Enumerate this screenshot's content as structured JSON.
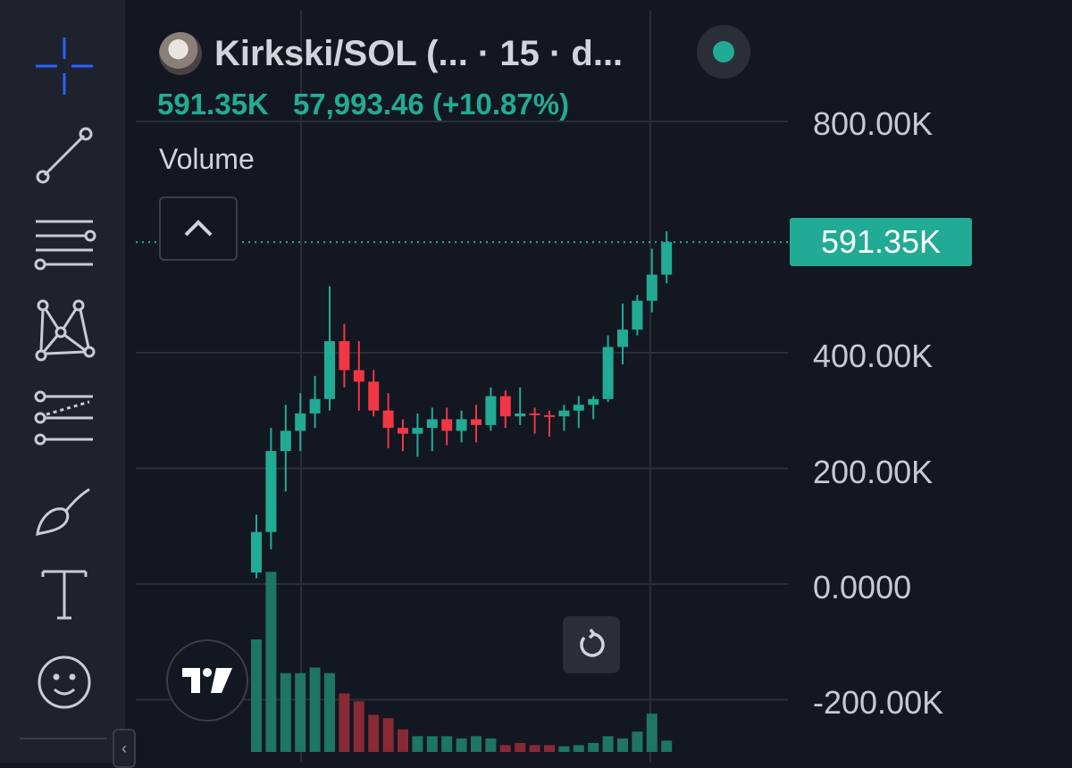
{
  "header": {
    "pair_title": "Kirkski/SOL (...   · 15 · d...",
    "price_primary": "591.35K",
    "price_secondary": "57,993.46 (+10.87%)"
  },
  "legend": {
    "volume_label": "Volume"
  },
  "last_price_badge": "591.35K",
  "icons": [
    "crosshair-icon",
    "trend-line-icon",
    "horizontal-lines-icon",
    "pattern-icon",
    "forecast-icon",
    "brush-icon",
    "text-icon",
    "emoji-icon",
    "chevron-up-icon",
    "reset-icon",
    "tradingview-logo-icon",
    "chevron-left-icon"
  ],
  "colors": {
    "up": "#22ab94",
    "down": "#f23645",
    "background": "#131722",
    "toolbar": "#1e222d"
  },
  "chart_data": {
    "type": "candlestick",
    "y_ticks": [
      "800.00K",
      "400.00K",
      "200.00K",
      "0.0000",
      "-200.00K"
    ],
    "ylim": [
      -200000,
      800000
    ],
    "last_price": 591350,
    "candles": [
      {
        "o": 20000,
        "h": 120000,
        "l": 10000,
        "c": 90000
      },
      {
        "o": 90000,
        "h": 270000,
        "l": 60000,
        "c": 230000
      },
      {
        "o": 230000,
        "h": 310000,
        "l": 160000,
        "c": 265000
      },
      {
        "o": 265000,
        "h": 330000,
        "l": 230000,
        "c": 295000
      },
      {
        "o": 295000,
        "h": 360000,
        "l": 270000,
        "c": 320000
      },
      {
        "o": 320000,
        "h": 515000,
        "l": 300000,
        "c": 420000
      },
      {
        "o": 420000,
        "h": 450000,
        "l": 340000,
        "c": 370000
      },
      {
        "o": 370000,
        "h": 420000,
        "l": 300000,
        "c": 350000
      },
      {
        "o": 350000,
        "h": 370000,
        "l": 290000,
        "c": 300000
      },
      {
        "o": 300000,
        "h": 330000,
        "l": 235000,
        "c": 270000
      },
      {
        "o": 270000,
        "h": 285000,
        "l": 230000,
        "c": 260000
      },
      {
        "o": 260000,
        "h": 295000,
        "l": 220000,
        "c": 270000
      },
      {
        "o": 270000,
        "h": 305000,
        "l": 230000,
        "c": 285000
      },
      {
        "o": 285000,
        "h": 305000,
        "l": 240000,
        "c": 265000
      },
      {
        "o": 265000,
        "h": 300000,
        "l": 245000,
        "c": 285000
      },
      {
        "o": 285000,
        "h": 310000,
        "l": 245000,
        "c": 275000
      },
      {
        "o": 275000,
        "h": 340000,
        "l": 265000,
        "c": 325000
      },
      {
        "o": 325000,
        "h": 335000,
        "l": 270000,
        "c": 290000
      },
      {
        "o": 290000,
        "h": 340000,
        "l": 275000,
        "c": 295000
      },
      {
        "o": 295000,
        "h": 305000,
        "l": 260000,
        "c": 292000
      },
      {
        "o": 292000,
        "h": 300000,
        "l": 255000,
        "c": 290000
      },
      {
        "o": 290000,
        "h": 310000,
        "l": 265000,
        "c": 300000
      },
      {
        "o": 300000,
        "h": 325000,
        "l": 270000,
        "c": 310000
      },
      {
        "o": 310000,
        "h": 325000,
        "l": 285000,
        "c": 320000
      },
      {
        "o": 320000,
        "h": 430000,
        "l": 315000,
        "c": 410000
      },
      {
        "o": 410000,
        "h": 485000,
        "l": 380000,
        "c": 440000
      },
      {
        "o": 440000,
        "h": 500000,
        "l": 430000,
        "c": 490000
      },
      {
        "o": 490000,
        "h": 580000,
        "l": 470000,
        "c": 535000
      },
      {
        "o": 535000,
        "h": 610000,
        "l": 520000,
        "c": 591350
      }
    ],
    "volumes": [
      {
        "v": 100,
        "up": true
      },
      {
        "v": 160,
        "up": true
      },
      {
        "v": 70,
        "up": true
      },
      {
        "v": 70,
        "up": true
      },
      {
        "v": 75,
        "up": true
      },
      {
        "v": 70,
        "up": true
      },
      {
        "v": 52,
        "up": false
      },
      {
        "v": 45,
        "up": false
      },
      {
        "v": 33,
        "up": false
      },
      {
        "v": 30,
        "up": false
      },
      {
        "v": 20,
        "up": false
      },
      {
        "v": 14,
        "up": true
      },
      {
        "v": 14,
        "up": true
      },
      {
        "v": 14,
        "up": true
      },
      {
        "v": 12,
        "up": true
      },
      {
        "v": 14,
        "up": true
      },
      {
        "v": 12,
        "up": true
      },
      {
        "v": 6,
        "up": false
      },
      {
        "v": 8,
        "up": false
      },
      {
        "v": 6,
        "up": false
      },
      {
        "v": 6,
        "up": false
      },
      {
        "v": 5,
        "up": true
      },
      {
        "v": 6,
        "up": true
      },
      {
        "v": 8,
        "up": true
      },
      {
        "v": 14,
        "up": true
      },
      {
        "v": 12,
        "up": true
      },
      {
        "v": 18,
        "up": true
      },
      {
        "v": 34,
        "up": true
      },
      {
        "v": 10,
        "up": true
      }
    ],
    "grid": true
  }
}
